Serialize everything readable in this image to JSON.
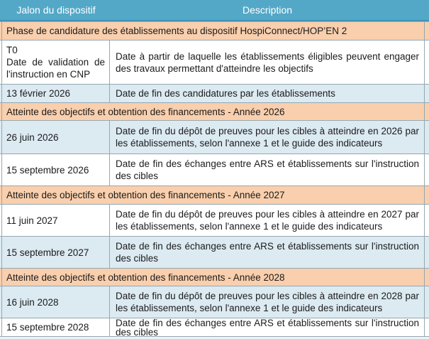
{
  "colors": {
    "header_bg": "#54a8c7",
    "header_text": "#ffffff",
    "section_bg": "#f9cfad",
    "alt_row_bg": "#dceaf2",
    "row_bg": "#ffffff",
    "border": "#97a7b0",
    "body_text": "#1b1b1b"
  },
  "table": {
    "columns": [
      "Jalon du dispositif",
      "Description"
    ],
    "rows": [
      {
        "type": "section",
        "text": "Phase de candidature des établissements au dispositif HospiConnect/HOP’EN 2"
      },
      {
        "type": "data",
        "jalon": "T0\nDate de validation de l'instruction en CNP",
        "description": "Date à partir de laquelle les établissements éligibles peuvent engager des travaux permettant d'atteindre les objectifs"
      },
      {
        "type": "data",
        "jalon": "13 février 2026",
        "description": "Date de fin des candidatures par les établissements"
      },
      {
        "type": "section",
        "text": "Atteinte des objectifs et obtention des financements - Année 2026"
      },
      {
        "type": "data",
        "jalon": "26 juin 2026",
        "description": "Date de fin du dépôt de preuves pour les cibles à atteindre en 2026 par les établissements, selon l'annexe 1 et le guide des indicateurs"
      },
      {
        "type": "data",
        "jalon": "15 septembre 2026",
        "description": "Date de fin des échanges entre ARS et établissements sur l'instruction des cibles"
      },
      {
        "type": "section",
        "text": "Atteinte des objectifs et obtention des financements - Année 2027"
      },
      {
        "type": "data",
        "jalon": "11 juin 2027",
        "description": "Date de fin du dépôt de preuves pour les cibles à atteindre en 2027 par les établissements, selon l'annexe 1 et le guide des indicateurs"
      },
      {
        "type": "data",
        "jalon": "15 septembre 2027",
        "description": "Date de fin des échanges entre ARS et établissements sur l'instruction des cibles"
      },
      {
        "type": "section",
        "text": "Atteinte des objectifs et obtention des financements - Année 2028"
      },
      {
        "type": "data",
        "jalon": "16 juin 2028",
        "description": "Date de fin du dépôt de preuves pour les cibles à atteindre en 2028 par les établissements, selon l'annexe 1 et le guide des indicateurs"
      },
      {
        "type": "data",
        "jalon": "15 septembre 2028",
        "description": "Date de fin des échanges entre ARS et établissements sur l'instruction des cibles"
      }
    ]
  }
}
